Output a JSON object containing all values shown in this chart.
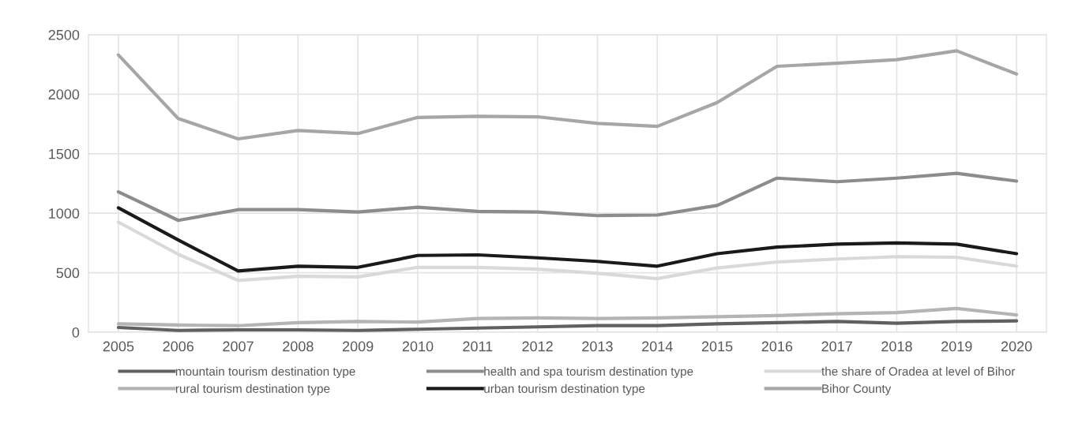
{
  "chart_data": {
    "type": "line",
    "categories": [
      "2005",
      "2006",
      "2007",
      "2008",
      "2009",
      "2010",
      "2011",
      "2012",
      "2013",
      "2014",
      "2015",
      "2016",
      "2017",
      "2018",
      "2019",
      "2020"
    ],
    "series": [
      {
        "name": "mountain tourism destination type",
        "color": "#606060",
        "values": [
          40,
          15,
          20,
          20,
          15,
          25,
          35,
          45,
          55,
          55,
          70,
          80,
          90,
          75,
          90,
          95
        ]
      },
      {
        "name": "rural tourism destination type",
        "color": "#b4b4b4",
        "values": [
          70,
          60,
          55,
          80,
          90,
          85,
          115,
          120,
          115,
          120,
          130,
          140,
          155,
          165,
          200,
          145
        ]
      },
      {
        "name": "health and spa tourism destination type",
        "color": "#8c8c8c",
        "values": [
          1180,
          940,
          1030,
          1030,
          1010,
          1050,
          1015,
          1010,
          980,
          985,
          1065,
          1295,
          1265,
          1295,
          1335,
          1270
        ]
      },
      {
        "name": "urban tourism destination type",
        "color": "#1a1a1a",
        "values": [
          1045,
          775,
          515,
          555,
          545,
          645,
          650,
          625,
          595,
          555,
          660,
          715,
          740,
          750,
          740,
          660
        ]
      },
      {
        "name": "the share of Oradea at level of Bihor",
        "color": "#d9d9d9",
        "values": [
          925,
          655,
          435,
          470,
          465,
          545,
          545,
          530,
          495,
          450,
          540,
          590,
          615,
          635,
          630,
          555
        ]
      },
      {
        "name": "Bihor County",
        "color": "#a6a6a6",
        "values": [
          2330,
          1795,
          1625,
          1695,
          1670,
          1805,
          1815,
          1810,
          1755,
          1730,
          1930,
          2235,
          2260,
          2290,
          2365,
          2170
        ]
      }
    ],
    "ylim": [
      0,
      2500
    ],
    "yticks": [
      0,
      500,
      1000,
      1500,
      2000,
      2500
    ],
    "grid": true,
    "legend": "bottom",
    "marker": "none",
    "line_style": "solid"
  }
}
